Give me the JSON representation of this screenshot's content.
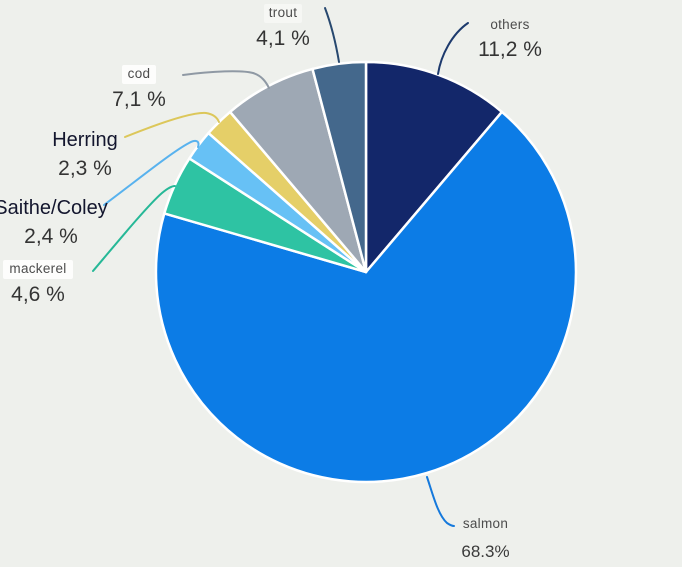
{
  "chart_data": {
    "type": "pie",
    "title": "",
    "background_color": "#eef0ec",
    "separator_color": "#ffffff",
    "start_angle": "12 o'clock",
    "direction": "clockwise",
    "slices": [
      {
        "label": "others",
        "pct_text": "11,2 %",
        "value": 11.2,
        "color": "#13276a",
        "leader_color": "#1d3a6d"
      },
      {
        "label": "salmon",
        "pct_text": "68.3%",
        "value": 68.3,
        "color": "#0c7ce6",
        "leader_color": "#1579dc"
      },
      {
        "label": "mackerel",
        "pct_text": "4,6 %",
        "value": 4.6,
        "color": "#2ec3a3",
        "leader_color": "#26b897"
      },
      {
        "label": "Saithe/Coley",
        "pct_text": "2,4 %",
        "value": 2.4,
        "color": "#67c1f5",
        "leader_color": "#58b2ee"
      },
      {
        "label": "Herring",
        "pct_text": "2,3 %",
        "value": 2.3,
        "color": "#e5cf68",
        "leader_color": "#dcc75a"
      },
      {
        "label": "cod",
        "pct_text": "7,1 %",
        "value": 7.1,
        "color": "#9ea8b4",
        "leader_color": "#8f99a4"
      },
      {
        "label": "trout",
        "pct_text": "4,1 %",
        "value": 4.1,
        "color": "#44688c",
        "leader_color": "#27486f"
      }
    ]
  }
}
